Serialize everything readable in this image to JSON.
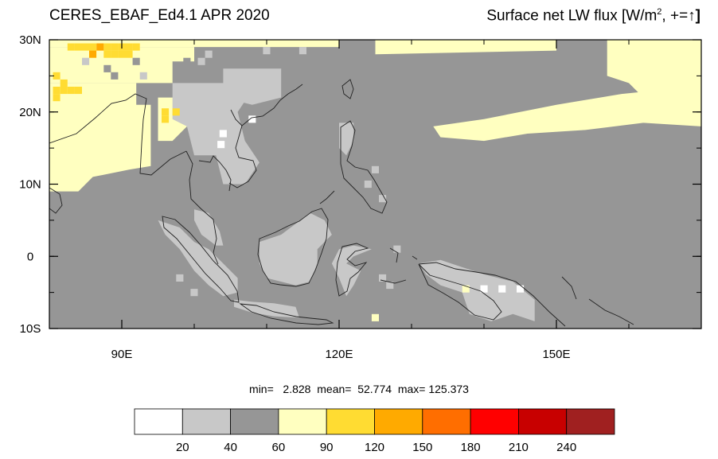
{
  "title": {
    "left": "CERES_EBAF_Ed4.1 APR 2020",
    "right_main": "Surface net LW flux [W/m",
    "right_sup": "2",
    "right_tail": ", +=",
    "right_arrow": "↑",
    "right_close": "]"
  },
  "stats": {
    "text": "min=   2.828  mean=  52.774  max= 125.373",
    "min": 2.828,
    "mean": 52.774,
    "max": 125.373
  },
  "map": {
    "lon_range": [
      80,
      170
    ],
    "lat_range": [
      -10,
      30
    ],
    "x_ticks": [
      {
        "lon": 90,
        "label": "90E"
      },
      {
        "lon": 120,
        "label": "120E"
      },
      {
        "lon": 150,
        "label": "150E"
      }
    ],
    "y_ticks": [
      {
        "lat": 30,
        "label": "30N"
      },
      {
        "lat": 20,
        "label": "20N"
      },
      {
        "lat": 10,
        "label": "10N"
      },
      {
        "lat": 0,
        "label": "0"
      },
      {
        "lat": -10,
        "label": "10S"
      }
    ],
    "background_class_color": "#969696",
    "regions": [
      {
        "name": "indian-subcontinent",
        "color": "#ffffc0",
        "poly": [
          [
            80,
            24
          ],
          [
            92,
            24
          ],
          [
            92,
            21
          ],
          [
            94,
            21
          ],
          [
            94,
            12.5
          ],
          [
            91,
            12
          ],
          [
            86,
            11
          ],
          [
            84,
            9
          ],
          [
            80,
            9
          ]
        ]
      },
      {
        "name": "south-china",
        "color": "#ffffc0",
        "poly": [
          [
            80,
            29
          ],
          [
            120,
            29
          ],
          [
            120,
            30
          ],
          [
            80,
            30
          ]
        ]
      },
      {
        "name": "tibet-north",
        "color": "#ffffc0",
        "poly": [
          [
            80,
            24
          ],
          [
            97,
            24
          ],
          [
            97,
            27
          ],
          [
            100,
            27
          ],
          [
            100,
            29
          ],
          [
            80,
            29
          ]
        ]
      },
      {
        "name": "burma-plateau",
        "color": "#ffffc0",
        "poly": [
          [
            95,
            22
          ],
          [
            99,
            22
          ],
          [
            99,
            18
          ],
          [
            97,
            16
          ],
          [
            95,
            16
          ]
        ]
      },
      {
        "name": "indochina-grey",
        "color": "#c8c8c8",
        "poly": [
          [
            97,
            24
          ],
          [
            106,
            24
          ],
          [
            106,
            25
          ],
          [
            108,
            25
          ],
          [
            108,
            23
          ],
          [
            106,
            20
          ],
          [
            107,
            16
          ],
          [
            109,
            13
          ],
          [
            107,
            10
          ],
          [
            104,
            10
          ],
          [
            103,
            14
          ],
          [
            100,
            14
          ],
          [
            99,
            18
          ],
          [
            97,
            19
          ]
        ]
      },
      {
        "name": "south-china-coast",
        "color": "#c8c8c8",
        "poly": [
          [
            104,
            26
          ],
          [
            112,
            26
          ],
          [
            112,
            22
          ],
          [
            108,
            21
          ],
          [
            104,
            22
          ]
        ]
      },
      {
        "name": "nw-pacific-band",
        "color": "#ffffc0",
        "poly": [
          [
            125,
            30
          ],
          [
            150,
            30
          ],
          [
            150,
            28.5
          ],
          [
            125,
            28
          ]
        ]
      },
      {
        "name": "central-pacific-band",
        "color": "#ffffc0",
        "poly": [
          [
            133,
            18
          ],
          [
            140,
            19
          ],
          [
            150,
            21
          ],
          [
            159,
            22.5
          ],
          [
            164,
            23
          ],
          [
            170,
            24
          ],
          [
            170,
            18
          ],
          [
            162,
            18.5
          ],
          [
            154,
            17.5
          ],
          [
            146,
            17
          ],
          [
            140,
            16
          ],
          [
            134,
            16.5
          ]
        ]
      },
      {
        "name": "ne-pacific",
        "color": "#ffffc0",
        "poly": [
          [
            157,
            30
          ],
          [
            170,
            30
          ],
          [
            170,
            18
          ],
          [
            165,
            19
          ],
          [
            162,
            22
          ],
          [
            160,
            24
          ],
          [
            157,
            25
          ]
        ]
      },
      {
        "name": "borneo",
        "color": "#c8c8c8",
        "poly": [
          [
            109,
            2
          ],
          [
            112,
            3
          ],
          [
            114,
            4.5
          ],
          [
            116,
            6
          ],
          [
            118,
            5
          ],
          [
            119,
            3
          ],
          [
            117,
            1
          ],
          [
            117,
            -1
          ],
          [
            116,
            -3.5
          ],
          [
            114,
            -4
          ],
          [
            110,
            -3
          ],
          [
            109,
            -1
          ]
        ]
      },
      {
        "name": "sumatra",
        "color": "#c8c8c8",
        "poly": [
          [
            95,
            5
          ],
          [
            98,
            4
          ],
          [
            100,
            2
          ],
          [
            102,
            1
          ],
          [
            104,
            -1
          ],
          [
            106,
            -3
          ],
          [
            106,
            -5
          ],
          [
            104,
            -5.5
          ],
          [
            102,
            -4
          ],
          [
            100,
            -2
          ],
          [
            98,
            1
          ],
          [
            96,
            3
          ]
        ]
      },
      {
        "name": "malaya",
        "color": "#c8c8c8",
        "poly": [
          [
            100,
            6.5
          ],
          [
            102,
            6
          ],
          [
            103.5,
            3.5
          ],
          [
            104,
            1.5
          ],
          [
            103,
            1.5
          ],
          [
            101,
            3
          ],
          [
            100,
            5
          ]
        ]
      },
      {
        "name": "java",
        "color": "#c8c8c8",
        "poly": [
          [
            105.5,
            -6
          ],
          [
            108,
            -6.3
          ],
          [
            111,
            -6.5
          ],
          [
            114,
            -7
          ],
          [
            114.5,
            -8.5
          ],
          [
            111,
            -8.3
          ],
          [
            108,
            -7.8
          ],
          [
            105.5,
            -7
          ]
        ]
      },
      {
        "name": "sulawesi",
        "color": "#c8c8c8",
        "poly": [
          [
            120,
            1
          ],
          [
            122,
            1.5
          ],
          [
            124.5,
            1
          ],
          [
            122,
            0
          ],
          [
            121,
            -1
          ],
          [
            123,
            -2
          ],
          [
            122,
            -4
          ],
          [
            121,
            -5.5
          ],
          [
            120,
            -3
          ],
          [
            119,
            -1
          ]
        ]
      },
      {
        "name": "new-guinea",
        "color": "#c8c8c8",
        "poly": [
          [
            131,
            -1
          ],
          [
            134,
            -0.5
          ],
          [
            137,
            -1.5
          ],
          [
            140,
            -2.5
          ],
          [
            144,
            -3.5
          ],
          [
            147,
            -6
          ],
          [
            147,
            -9
          ],
          [
            144,
            -8
          ],
          [
            141,
            -9
          ],
          [
            138,
            -8
          ],
          [
            137,
            -5
          ],
          [
            134,
            -4
          ],
          [
            132,
            -2.5
          ]
        ]
      },
      {
        "name": "philippines",
        "color": "#c8c8c8",
        "poly": [
          [
            120,
            18.5
          ],
          [
            122,
            18.5
          ],
          [
            122,
            16
          ],
          [
            121,
            14
          ],
          [
            120,
            15
          ],
          [
            120,
            17
          ]
        ]
      }
    ],
    "patches": [
      {
        "color": "#ffffff",
        "lon": 104.0,
        "lat": 17.0
      },
      {
        "color": "#ffffff",
        "lon": 103.7,
        "lat": 15.5
      },
      {
        "color": "#ffffff",
        "lon": 108.0,
        "lat": 19.0
      },
      {
        "color": "#ffffff",
        "lon": 140.0,
        "lat": -4.5
      },
      {
        "color": "#ffffff",
        "lon": 142.5,
        "lat": -4.5
      },
      {
        "color": "#ffffff",
        "lon": 145.0,
        "lat": -4.5
      },
      {
        "color": "#ffffc0",
        "lon": 125.0,
        "lat": -8.5
      },
      {
        "color": "#ffffc0",
        "lon": 137.5,
        "lat": -4.5
      },
      {
        "color": "#ffdc32",
        "lon": 81.0,
        "lat": 25.0
      },
      {
        "color": "#ffdc32",
        "lon": 82.0,
        "lat": 24.0
      },
      {
        "color": "#ffdc32",
        "lon": 81.0,
        "lat": 23.0
      },
      {
        "color": "#ffdc32",
        "lon": 82.0,
        "lat": 23.0
      },
      {
        "color": "#ffdc32",
        "lon": 83.0,
        "lat": 23.0
      },
      {
        "color": "#ffdc32",
        "lon": 84.0,
        "lat": 23.0
      },
      {
        "color": "#ffdc32",
        "lon": 81.0,
        "lat": 22.0
      },
      {
        "color": "#ffdc32",
        "lon": 96.0,
        "lat": 20.0
      },
      {
        "color": "#ffdc32",
        "lon": 96.0,
        "lat": 19.0
      },
      {
        "color": "#ffdc32",
        "lon": 97.5,
        "lat": 20.0
      },
      {
        "color": "#ffdc32",
        "lon": 83.0,
        "lat": 29.0
      },
      {
        "color": "#ffdc32",
        "lon": 84.0,
        "lat": 29.0
      },
      {
        "color": "#ffdc32",
        "lon": 85.0,
        "lat": 29.0
      },
      {
        "color": "#ffdc32",
        "lon": 86.0,
        "lat": 29.0
      },
      {
        "color": "#ffdc32",
        "lon": 88.0,
        "lat": 29.0
      },
      {
        "color": "#ffdc32",
        "lon": 89.0,
        "lat": 29.0
      },
      {
        "color": "#ffdc32",
        "lon": 90.0,
        "lat": 29.0
      },
      {
        "color": "#ffdc32",
        "lon": 91.0,
        "lat": 29.0
      },
      {
        "color": "#ffdc32",
        "lon": 92.0,
        "lat": 29.0
      },
      {
        "color": "#ffdc32",
        "lon": 88.0,
        "lat": 28.0
      },
      {
        "color": "#ffdc32",
        "lon": 89.0,
        "lat": 28.0
      },
      {
        "color": "#ffdc32",
        "lon": 90.0,
        "lat": 28.0
      },
      {
        "color": "#ffdc32",
        "lon": 91.0,
        "lat": 28.0
      },
      {
        "color": "#ffaa00",
        "lon": 87.0,
        "lat": 29.0
      },
      {
        "color": "#ffaa00",
        "lon": 86.0,
        "lat": 28.0
      },
      {
        "color": "#969696",
        "lon": 88.0,
        "lat": 26.0
      },
      {
        "color": "#969696",
        "lon": 89.0,
        "lat": 25.0
      },
      {
        "color": "#969696",
        "lon": 92.0,
        "lat": 27.0
      },
      {
        "color": "#969696",
        "lon": 95.0,
        "lat": 23.0
      },
      {
        "color": "#969696",
        "lon": 99.0,
        "lat": 27.0
      },
      {
        "color": "#c8c8c8",
        "lon": 85.0,
        "lat": 27.0
      },
      {
        "color": "#c8c8c8",
        "lon": 93.0,
        "lat": 25.0
      },
      {
        "color": "#c8c8c8",
        "lon": 101.0,
        "lat": 27.0
      },
      {
        "color": "#c8c8c8",
        "lon": 102.0,
        "lat": 28.0
      },
      {
        "color": "#c8c8c8",
        "lon": 110.0,
        "lat": 28.5
      },
      {
        "color": "#c8c8c8",
        "lon": 115.0,
        "lat": 28.5
      },
      {
        "color": "#c8c8c8",
        "lon": 98.0,
        "lat": -3.0
      },
      {
        "color": "#c8c8c8",
        "lon": 100.0,
        "lat": -5.0
      },
      {
        "color": "#c8c8c8",
        "lon": 126.0,
        "lat": -3.0
      },
      {
        "color": "#c8c8c8",
        "lon": 127.0,
        "lat": -4.0
      },
      {
        "color": "#c8c8c8",
        "lon": 128.0,
        "lat": 1.0
      },
      {
        "color": "#c8c8c8",
        "lon": 125.0,
        "lat": 12.0
      },
      {
        "color": "#c8c8c8",
        "lon": 124.0,
        "lat": 10.0
      },
      {
        "color": "#c8c8c8",
        "lon": 126.0,
        "lat": 8.0
      }
    ]
  },
  "colorbar": {
    "colors": [
      "#ffffff",
      "#c8c8c8",
      "#969696",
      "#ffffc0",
      "#ffdc32",
      "#ffaa00",
      "#ff6e00",
      "#ff0000",
      "#c80000",
      "#a02020"
    ],
    "labels": [
      "20",
      "40",
      "60",
      "90",
      "120",
      "150",
      "180",
      "210",
      "240"
    ]
  }
}
